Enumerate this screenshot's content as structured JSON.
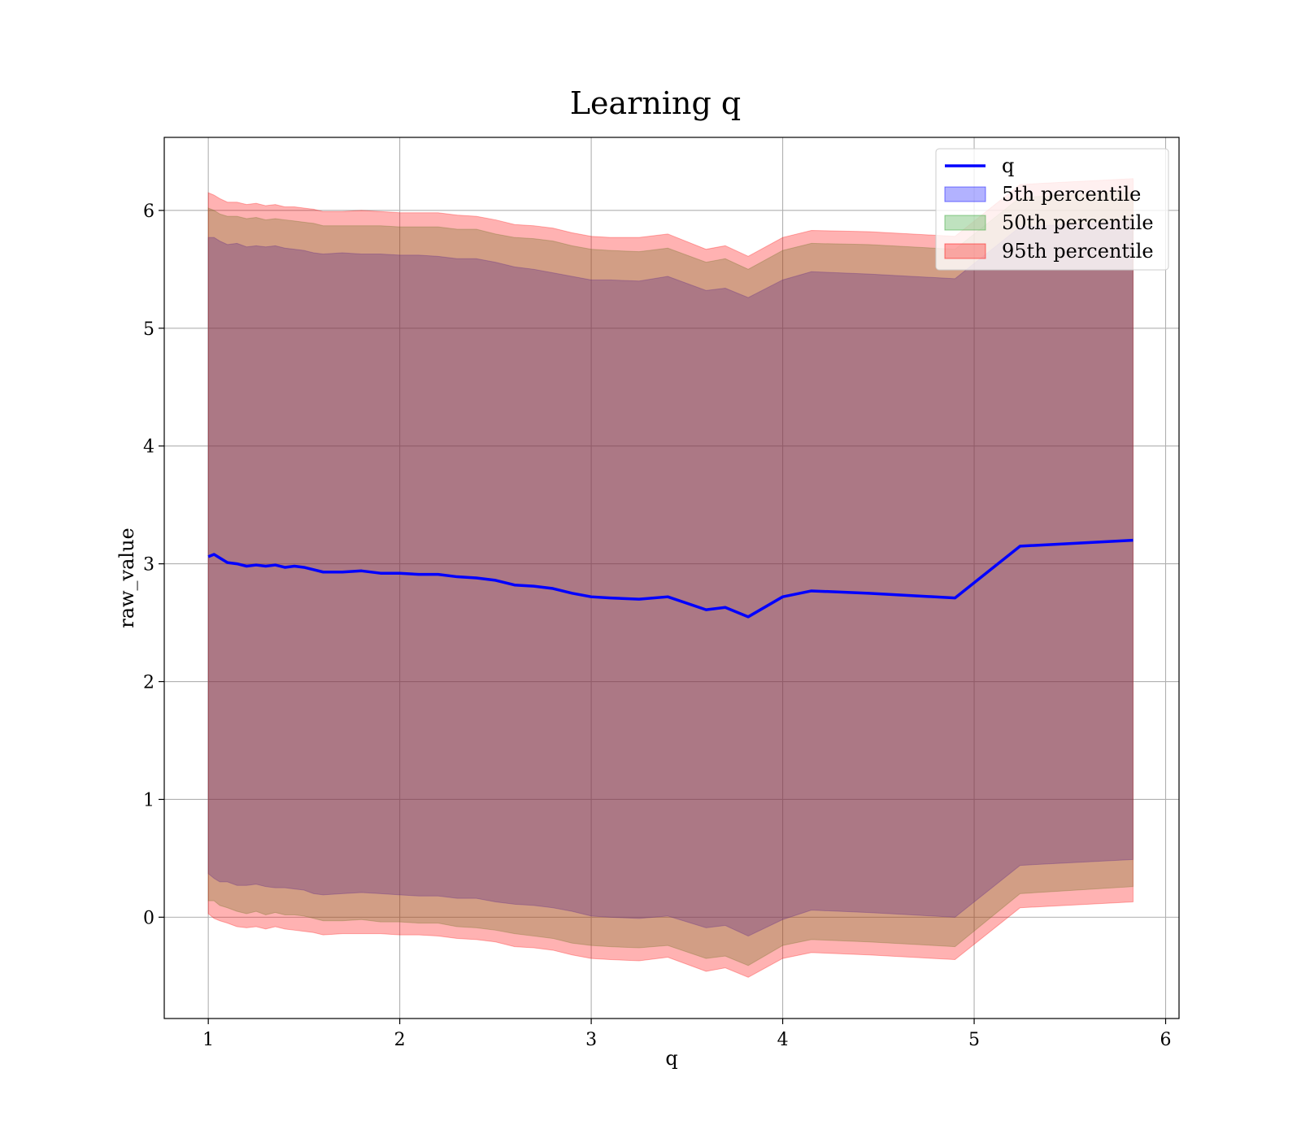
{
  "chart_data": {
    "type": "area",
    "title": "Learning q",
    "xlabel": "q",
    "ylabel": "raw_value",
    "xlim": [
      0.77,
      6.07
    ],
    "ylim": [
      -0.86,
      6.62
    ],
    "xticks": [
      1,
      2,
      3,
      4,
      5,
      6
    ],
    "yticks": [
      0,
      1,
      2,
      3,
      4,
      5,
      6
    ],
    "grid": true,
    "legend_position": "top-right",
    "x": [
      1.0,
      1.03,
      1.06,
      1.1,
      1.15,
      1.2,
      1.25,
      1.3,
      1.35,
      1.4,
      1.45,
      1.5,
      1.55,
      1.6,
      1.7,
      1.8,
      1.9,
      2.0,
      2.1,
      2.2,
      2.3,
      2.4,
      2.5,
      2.6,
      2.7,
      2.8,
      2.9,
      3.0,
      3.1,
      3.25,
      3.4,
      3.6,
      3.7,
      3.82,
      4.0,
      4.15,
      4.45,
      4.9,
      5.24,
      5.83
    ],
    "series": [
      {
        "name": "q",
        "kind": "line",
        "color": "#0000ff",
        "values": [
          3.06,
          3.08,
          3.05,
          3.01,
          3.0,
          2.98,
          2.99,
          2.98,
          2.99,
          2.97,
          2.98,
          2.97,
          2.95,
          2.93,
          2.93,
          2.94,
          2.92,
          2.92,
          2.91,
          2.91,
          2.89,
          2.88,
          2.86,
          2.82,
          2.81,
          2.79,
          2.75,
          2.72,
          2.71,
          2.7,
          2.72,
          2.61,
          2.63,
          2.55,
          2.72,
          2.77,
          2.75,
          2.71,
          3.15,
          3.2
        ]
      },
      {
        "name": "5th percentile",
        "kind": "band",
        "color": "#0000ff",
        "opacity": 0.3,
        "lower": [
          0.37,
          0.33,
          0.3,
          0.3,
          0.27,
          0.27,
          0.28,
          0.26,
          0.25,
          0.25,
          0.24,
          0.23,
          0.2,
          0.19,
          0.2,
          0.21,
          0.2,
          0.19,
          0.18,
          0.18,
          0.16,
          0.16,
          0.13,
          0.11,
          0.1,
          0.08,
          0.05,
          0.01,
          -0.0,
          -0.01,
          0.01,
          -0.09,
          -0.07,
          -0.16,
          -0.02,
          0.06,
          0.04,
          -0.0,
          0.44,
          0.49
        ],
        "upper": [
          5.77,
          5.77,
          5.74,
          5.71,
          5.72,
          5.69,
          5.7,
          5.69,
          5.7,
          5.68,
          5.67,
          5.66,
          5.64,
          5.63,
          5.64,
          5.63,
          5.63,
          5.62,
          5.62,
          5.61,
          5.59,
          5.59,
          5.56,
          5.52,
          5.5,
          5.47,
          5.44,
          5.41,
          5.41,
          5.4,
          5.44,
          5.32,
          5.34,
          5.26,
          5.41,
          5.48,
          5.46,
          5.42,
          5.86,
          5.91
        ]
      },
      {
        "name": "50th percentile",
        "kind": "band",
        "color": "#2ca02c",
        "opacity": 0.3,
        "lower": [
          0.14,
          0.14,
          0.1,
          0.08,
          0.05,
          0.03,
          0.05,
          0.02,
          0.04,
          0.02,
          0.02,
          0.01,
          -0.01,
          -0.03,
          -0.03,
          -0.02,
          -0.04,
          -0.04,
          -0.05,
          -0.05,
          -0.08,
          -0.09,
          -0.11,
          -0.14,
          -0.16,
          -0.18,
          -0.22,
          -0.24,
          -0.25,
          -0.26,
          -0.24,
          -0.35,
          -0.33,
          -0.41,
          -0.24,
          -0.19,
          -0.21,
          -0.25,
          0.2,
          0.26
        ],
        "upper": [
          6.02,
          6.0,
          5.97,
          5.95,
          5.95,
          5.93,
          5.94,
          5.92,
          5.93,
          5.92,
          5.91,
          5.9,
          5.89,
          5.87,
          5.87,
          5.87,
          5.87,
          5.86,
          5.86,
          5.86,
          5.84,
          5.84,
          5.8,
          5.77,
          5.76,
          5.74,
          5.7,
          5.67,
          5.66,
          5.65,
          5.68,
          5.56,
          5.59,
          5.5,
          5.66,
          5.72,
          5.71,
          5.67,
          6.11,
          6.16
        ]
      },
      {
        "name": "95th percentile",
        "kind": "band",
        "color": "#ff0000",
        "opacity": 0.3,
        "lower": [
          0.03,
          -0.01,
          -0.03,
          -0.05,
          -0.08,
          -0.09,
          -0.08,
          -0.1,
          -0.08,
          -0.1,
          -0.11,
          -0.12,
          -0.13,
          -0.15,
          -0.14,
          -0.14,
          -0.14,
          -0.15,
          -0.15,
          -0.16,
          -0.18,
          -0.19,
          -0.21,
          -0.25,
          -0.26,
          -0.28,
          -0.32,
          -0.35,
          -0.36,
          -0.37,
          -0.34,
          -0.46,
          -0.43,
          -0.51,
          -0.35,
          -0.3,
          -0.32,
          -0.36,
          0.08,
          0.13
        ],
        "upper": [
          6.15,
          6.13,
          6.1,
          6.07,
          6.07,
          6.05,
          6.06,
          6.04,
          6.05,
          6.03,
          6.03,
          6.02,
          6.01,
          5.99,
          5.99,
          6.0,
          5.99,
          5.98,
          5.98,
          5.98,
          5.96,
          5.95,
          5.92,
          5.88,
          5.87,
          5.85,
          5.81,
          5.78,
          5.77,
          5.77,
          5.8,
          5.67,
          5.7,
          5.61,
          5.77,
          5.83,
          5.82,
          5.78,
          6.22,
          6.27
        ]
      }
    ]
  }
}
